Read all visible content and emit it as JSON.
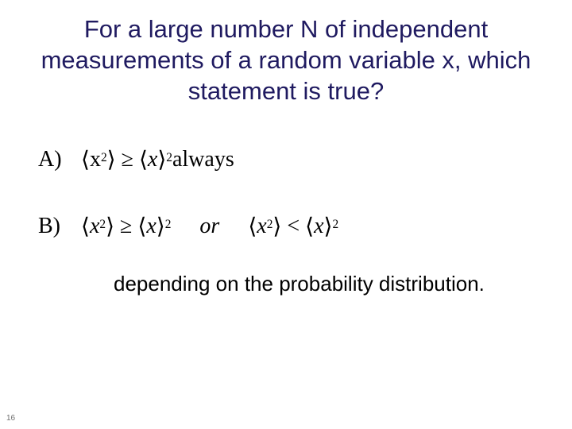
{
  "title": {
    "text": "For a large number N of independent measurements of a random variable x, which statement is true?",
    "color": "#1f1a60",
    "fontsize": 31,
    "font": "Arial"
  },
  "options": {
    "font": "Times New Roman",
    "fontsize": 28,
    "color": "#000000",
    "a": {
      "label": "A)",
      "lhs_inner": "x",
      "lhs_exp": "2",
      "rel": "≥",
      "rhs_inner": "x",
      "rhs_exp": "2",
      "tail": " always"
    },
    "b": {
      "label": "B)",
      "p1_lhs_inner": "x",
      "p1_lhs_exp": "2",
      "p1_rel": "≥",
      "p1_rhs_inner": "x",
      "p1_rhs_exp": "2",
      "or_text": "or",
      "p2_lhs_inner": "x",
      "p2_lhs_exp": "2",
      "p2_rel": "<",
      "p2_rhs_inner": "x",
      "p2_rhs_exp": "2"
    }
  },
  "caption": {
    "text": "depending on the probability distribution.",
    "fontsize": 26,
    "font": "Arial",
    "color": "#000000"
  },
  "pagenum": {
    "text": "16",
    "fontsize": 10,
    "color": "#707070"
  },
  "glyphs": {
    "ang_open": "⟨",
    "ang_close": "⟩"
  }
}
